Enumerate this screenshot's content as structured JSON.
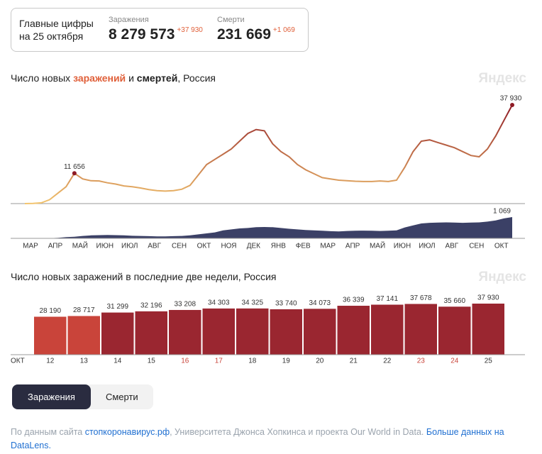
{
  "header": {
    "title": "Главные цифры на 25 октября",
    "stats": [
      {
        "label": "Заражения",
        "value": "8 279 573",
        "delta": "+37 930"
      },
      {
        "label": "Смерти",
        "value": "231 669",
        "delta": "+1 069"
      }
    ]
  },
  "chart_data": [
    {
      "type": "line",
      "title_parts": [
        "Число новых",
        "заражений",
        "и",
        "смертей",
        ", Россия"
      ],
      "watermark": "Яндекс",
      "categories": [
        "МАР",
        null,
        null,
        "АПР",
        null,
        null,
        "МАЙ",
        null,
        null,
        "ИЮН",
        null,
        null,
        "ИЮЛ",
        null,
        null,
        "АВГ",
        null,
        null,
        "СЕН",
        null,
        null,
        "ОКТ",
        null,
        null,
        "НОЯ",
        null,
        null,
        "ДЕК",
        null,
        null,
        "ЯНВ",
        null,
        null,
        "ФЕВ",
        null,
        null,
        "МАР",
        null,
        null,
        "АПР",
        null,
        null,
        "МАЙ",
        null,
        null,
        "ИЮН",
        null,
        null,
        "ИЮЛ",
        null,
        null,
        "АВГ",
        null,
        null,
        "СЕН",
        null,
        null,
        "ОКТ",
        null,
        null
      ],
      "series": [
        {
          "type": "line",
          "colors": [
            "#f2c46e",
            "#8e1a24"
          ],
          "values": [
            0,
            50,
            300,
            1500,
            4000,
            6500,
            11656,
            9500,
            8800,
            8700,
            8000,
            7500,
            6800,
            6500,
            6000,
            5400,
            5000,
            4800,
            5000,
            5500,
            7000,
            11000,
            15000,
            17000,
            19000,
            21000,
            24000,
            27000,
            28500,
            28000,
            23000,
            20000,
            18000,
            15000,
            13000,
            11500,
            10000,
            9500,
            9000,
            8800,
            8600,
            8500,
            8500,
            8700,
            8500,
            9000,
            14000,
            20000,
            24000,
            24500,
            23500,
            22500,
            21500,
            20000,
            18500,
            18000,
            21000,
            26000,
            32000,
            37930
          ],
          "value_labels": [
            null,
            null,
            null,
            null,
            null,
            null,
            "11 656",
            null,
            null,
            null,
            null,
            null,
            null,
            null,
            null,
            null,
            null,
            null,
            null,
            null,
            null,
            null,
            null,
            null,
            null,
            null,
            null,
            null,
            null,
            null,
            null,
            null,
            null,
            null,
            null,
            null,
            null,
            null,
            null,
            null,
            null,
            null,
            null,
            null,
            null,
            null,
            null,
            null,
            null,
            null,
            null,
            null,
            null,
            null,
            null,
            null,
            null,
            null,
            null,
            "37 930"
          ]
        },
        {
          "type": "area",
          "color": "#3b4066",
          "values": [
            0,
            0,
            2,
            10,
            30,
            60,
            80,
            120,
            150,
            160,
            170,
            160,
            150,
            130,
            120,
            110,
            100,
            100,
            110,
            120,
            150,
            200,
            250,
            300,
            400,
            450,
            500,
            520,
            560,
            570,
            560,
            520,
            480,
            450,
            420,
            400,
            380,
            360,
            350,
            370,
            380,
            390,
            380,
            370,
            380,
            400,
            550,
            650,
            750,
            780,
            790,
            800,
            790,
            780,
            790,
            800,
            840,
            900,
            1000,
            1069
          ],
          "value_labels": [
            null,
            null,
            null,
            null,
            null,
            null,
            null,
            null,
            null,
            null,
            null,
            null,
            null,
            null,
            null,
            null,
            null,
            null,
            null,
            null,
            null,
            null,
            null,
            null,
            null,
            null,
            null,
            null,
            null,
            null,
            null,
            null,
            null,
            null,
            null,
            null,
            null,
            null,
            null,
            null,
            null,
            null,
            null,
            null,
            null,
            null,
            null,
            null,
            null,
            null,
            null,
            null,
            null,
            null,
            null,
            null,
            null,
            null,
            null,
            "1 069"
          ]
        }
      ]
    },
    {
      "type": "bar",
      "title": "Число новых заражений в последние две недели, Россия",
      "watermark": "Яндекс",
      "x_label": "ОКТ",
      "categories": [
        "12",
        "13",
        "14",
        "15",
        "16",
        "17",
        "18",
        "19",
        "20",
        "21",
        "22",
        "23",
        "24",
        "25"
      ],
      "values": [
        28190,
        28717,
        31299,
        32196,
        33208,
        34303,
        34325,
        33740,
        34073,
        36339,
        37141,
        37678,
        35660,
        37930
      ],
      "value_labels": [
        "28 190",
        "28 717",
        "31 299",
        "32 196",
        "33 208",
        "34 303",
        "34 325",
        "33 740",
        "34 073",
        "36 339",
        "37 141",
        "37 678",
        "35 660",
        "37 930"
      ],
      "colors": [
        "#c9443a",
        "#c9443a",
        "#9a2630",
        "#9a2630",
        "#9a2630",
        "#9a2630",
        "#9a2630",
        "#9a2630",
        "#9a2630",
        "#9a2630",
        "#9a2630",
        "#9a2630",
        "#9a2630",
        "#9a2630"
      ],
      "category_colors": [
        "#333333",
        "#333333",
        "#333333",
        "#333333",
        "#c9443a",
        "#c9443a",
        "#333333",
        "#333333",
        "#333333",
        "#333333",
        "#333333",
        "#c9443a",
        "#c9443a",
        "#333333"
      ]
    }
  ],
  "tabs": [
    "Заражения",
    "Смерти"
  ],
  "footer": {
    "prefix": "По данным сайта",
    "link": "стопкоронавирус.рф",
    "rest": ", Университета Джонса Хопкинса и проекта Our World in Data.",
    "more": "Больше данных на DataLens."
  }
}
